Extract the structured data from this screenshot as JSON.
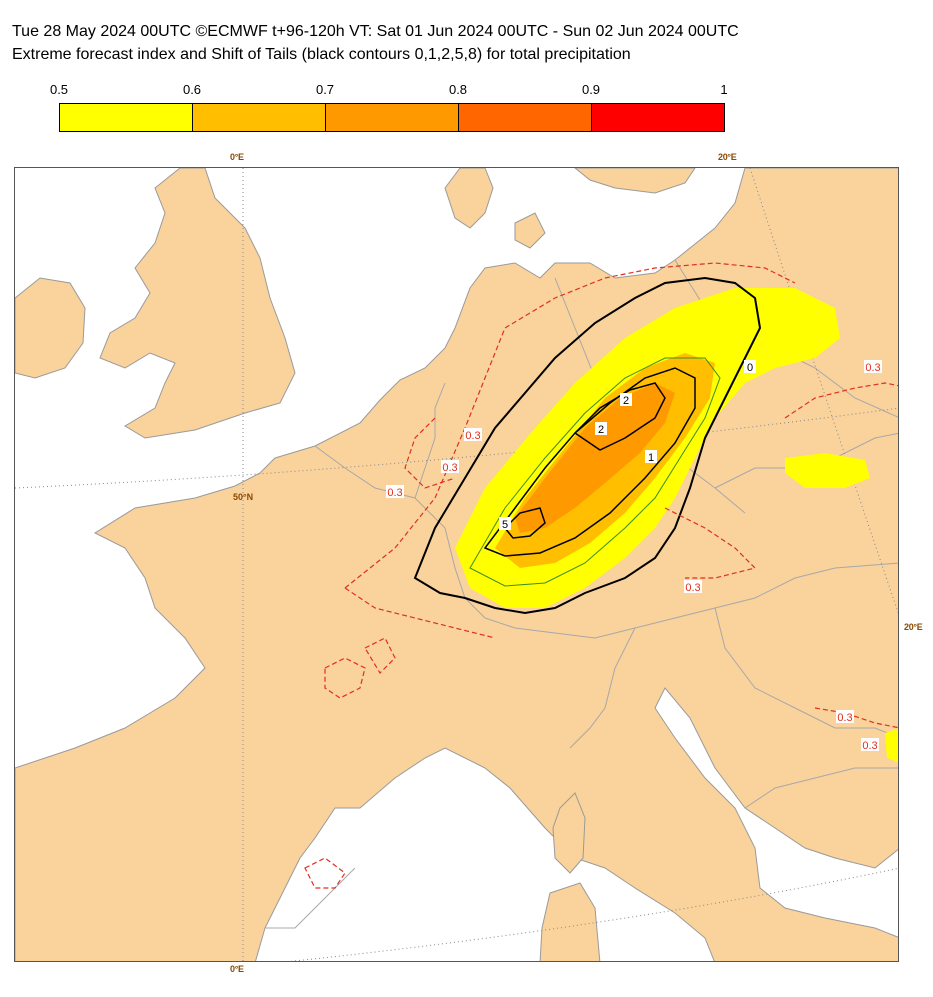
{
  "header": {
    "title_line1": "Tue 28 May 2024 00UTC ©ECMWF t+96-120h  VT: Sat 01 Jun 2024 00UTC - Sun 02 Jun 2024 00UTC",
    "title_line2": "Extreme forecast index and Shift of Tails (black contours 0,1,2,5,8) for total precipitation"
  },
  "colorbar": {
    "ticks": [
      "0.5",
      "0.6",
      "0.7",
      "0.8",
      "0.9",
      "1"
    ],
    "colors": [
      "#ffff00",
      "#ffbf00",
      "#ff9900",
      "#ff6600",
      "#ff0000"
    ]
  },
  "map": {
    "land_color": "#f9d29c",
    "sea_color": "#ffffff",
    "grid_labels": {
      "top_0": "0°E",
      "top_20": "20°E",
      "lat_50": "50°N",
      "right_20": "20°E",
      "bottom_0": "0°E"
    },
    "efi_contour_label": "0.3",
    "sot_contour_labels": [
      "0",
      "1",
      "2",
      "5"
    ]
  }
}
